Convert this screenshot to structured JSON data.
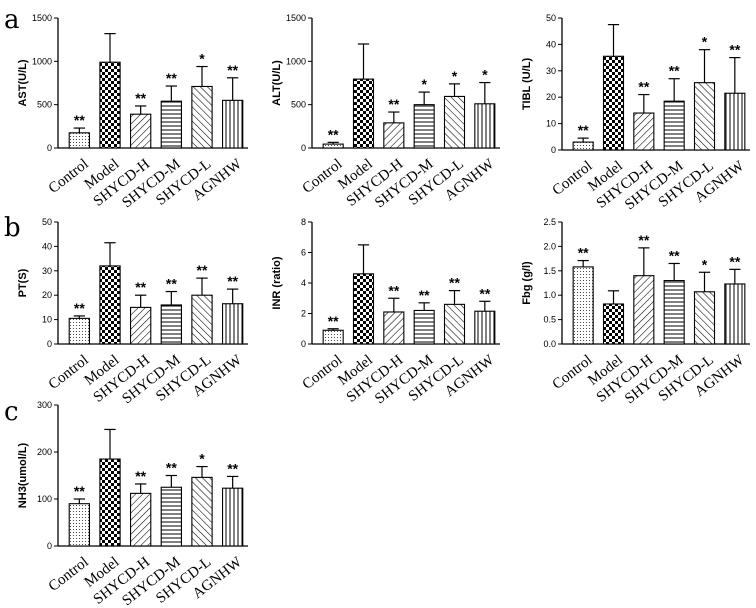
{
  "panel_letters": [
    "a",
    "b",
    "c"
  ],
  "chart_data": [
    {
      "type": "bar",
      "ylabel": "AST(U/L)",
      "categories": [
        "Control",
        "Model",
        "SHYCD-H",
        "SHYCD-M",
        "SHYCD-L",
        "AGNHW"
      ],
      "ylim": [
        0,
        1500
      ],
      "yticks": [
        0,
        500,
        1000,
        1500
      ],
      "values": [
        175,
        990,
        390,
        540,
        710,
        550
      ],
      "errors": [
        55,
        330,
        95,
        175,
        230,
        260
      ],
      "significance": [
        "**",
        "",
        "**",
        "**",
        "*",
        "**"
      ]
    },
    {
      "type": "bar",
      "ylabel": "ALT(U/L)",
      "categories": [
        "Control",
        "Model",
        "SHYCD-H",
        "SHYCD-M",
        "SHYCD-L",
        "AGNHW"
      ],
      "ylim": [
        0,
        1500
      ],
      "yticks": [
        0,
        500,
        1000,
        1500
      ],
      "values": [
        45,
        795,
        290,
        500,
        595,
        510
      ],
      "errors": [
        20,
        405,
        125,
        145,
        145,
        245
      ],
      "significance": [
        "**",
        "",
        "**",
        "*",
        "*",
        "*"
      ]
    },
    {
      "type": "bar",
      "ylabel": "TIBL (U/L)",
      "categories": [
        "Control",
        "Model",
        "SHYCD-H",
        "SHYCD-M",
        "SHYCD-L",
        "AGNHW"
      ],
      "ylim": [
        0,
        50
      ],
      "yticks": [
        0,
        10,
        20,
        30,
        40,
        50
      ],
      "values": [
        3,
        35.5,
        14,
        18.5,
        25.5,
        21.5
      ],
      "errors": [
        1.5,
        12,
        7,
        8.5,
        12.5,
        13.5
      ],
      "significance": [
        "**",
        "",
        "**",
        "**",
        "*",
        "**"
      ]
    },
    {
      "type": "bar",
      "ylabel": "PT(S)",
      "categories": [
        "Control",
        "Model",
        "SHYCD-H",
        "SHYCD-M",
        "SHYCD-L",
        "AGNHW"
      ],
      "ylim": [
        0,
        50
      ],
      "yticks": [
        0,
        10,
        20,
        30,
        40,
        50
      ],
      "values": [
        10.5,
        32,
        15,
        16,
        20,
        16.5
      ],
      "errors": [
        1,
        9.5,
        5,
        5.5,
        7,
        6
      ],
      "significance": [
        "**",
        "",
        "**",
        "**",
        "**",
        "**"
      ]
    },
    {
      "type": "bar",
      "ylabel": "INR (ratio)",
      "categories": [
        "Control",
        "Model",
        "SHYCD-H",
        "SHYCD-M",
        "SHYCD-L",
        "AGNHW"
      ],
      "ylim": [
        0,
        8
      ],
      "yticks": [
        0,
        2,
        4,
        6,
        8
      ],
      "values": [
        0.9,
        4.6,
        2.1,
        2.2,
        2.6,
        2.15
      ],
      "errors": [
        0.1,
        1.9,
        0.9,
        0.5,
        0.9,
        0.65
      ],
      "significance": [
        "**",
        "",
        "**",
        "**",
        "**",
        "**"
      ]
    },
    {
      "type": "bar",
      "ylabel": "Fbg (g/l)",
      "categories": [
        "Control",
        "Model",
        "SHYCD-H",
        "SHYCD-M",
        "SHYCD-L",
        "AGNHW"
      ],
      "ylim": [
        0,
        2.5
      ],
      "yticks": [
        "0.0",
        "0.5",
        "1.0",
        "1.5",
        "2.0",
        "2.5"
      ],
      "values": [
        1.58,
        0.82,
        1.4,
        1.3,
        1.07,
        1.23
      ],
      "errors": [
        0.13,
        0.27,
        0.57,
        0.35,
        0.4,
        0.3
      ],
      "significance": [
        "**",
        "",
        "**",
        "**",
        "*",
        "**"
      ]
    },
    {
      "type": "bar",
      "ylabel": "NH3(umol/L)",
      "categories": [
        "Control",
        "Model",
        "SHYCD-H",
        "SHYCD-M",
        "SHYCD-L",
        "AGNHW"
      ],
      "ylim": [
        0,
        300
      ],
      "yticks": [
        0,
        100,
        200,
        300
      ],
      "values": [
        90,
        185,
        112,
        125,
        146,
        123
      ],
      "errors": [
        10,
        63,
        20,
        25,
        23,
        25
      ],
      "significance": [
        "**",
        "",
        "**",
        "**",
        "*",
        "**"
      ]
    }
  ]
}
